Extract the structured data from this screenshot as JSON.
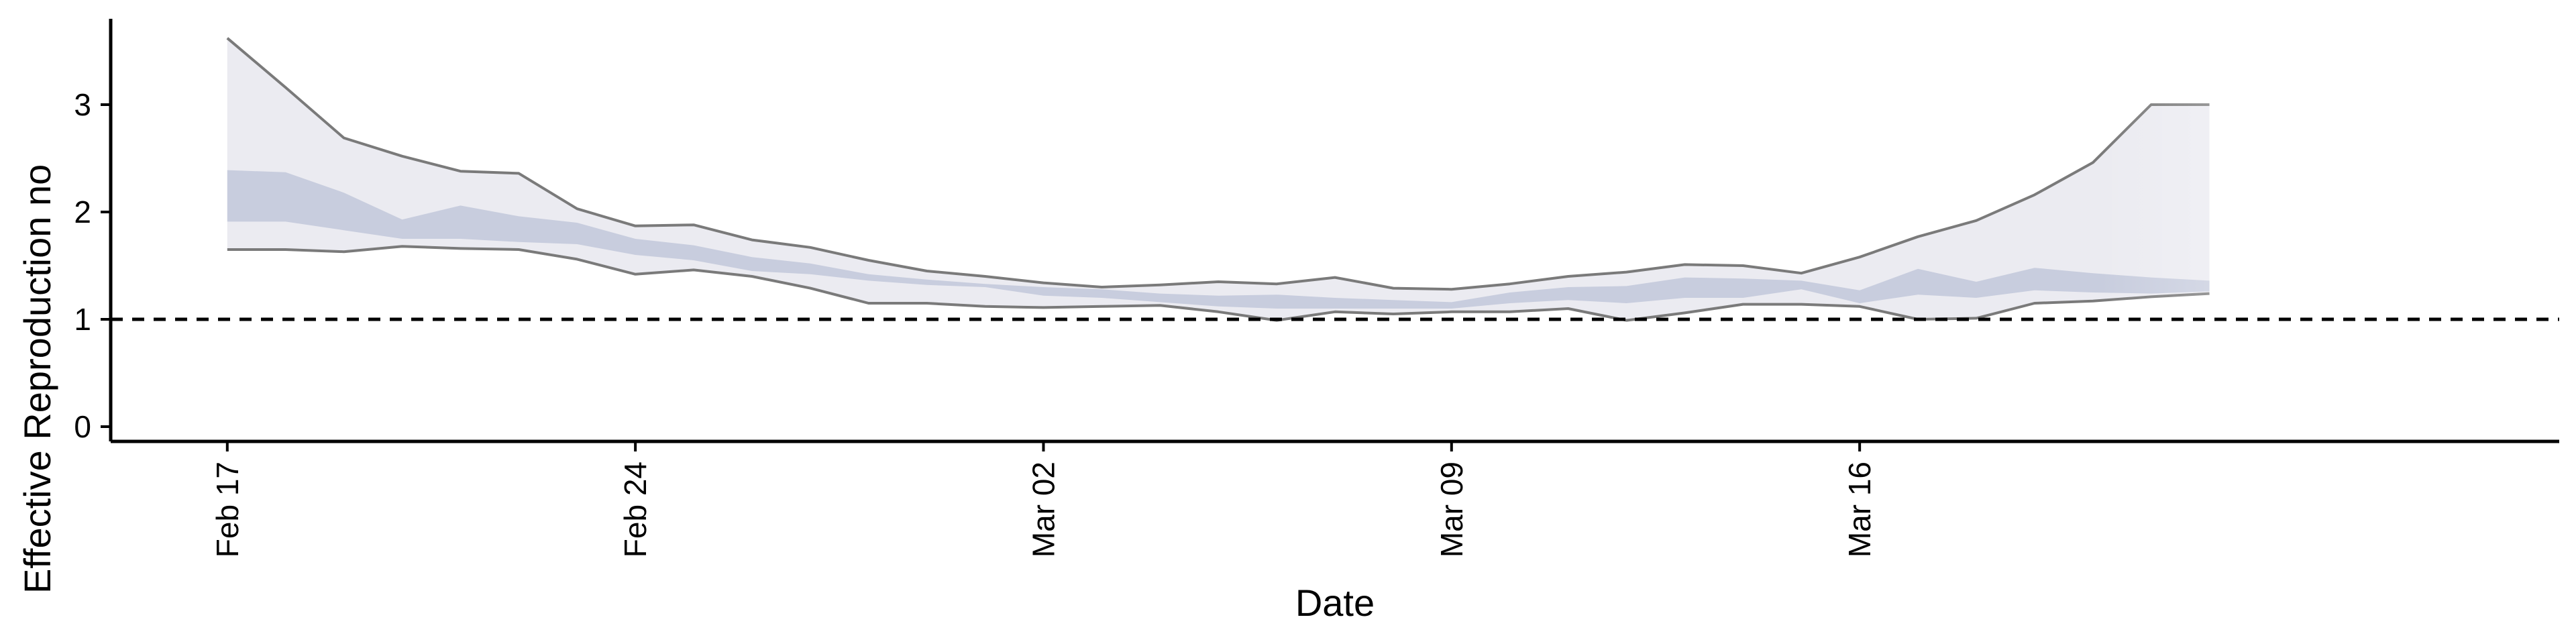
{
  "chart_data": {
    "type": "area",
    "xlabel": "Date",
    "ylabel": "Effective Reproduction no",
    "x_ticks": [
      "Feb 17",
      "Feb 24",
      "Mar 02",
      "Mar 09",
      "Mar 16"
    ],
    "y_ticks": [
      0,
      1,
      2,
      3
    ],
    "xlim": [
      "2020-02-15",
      "2020-03-28"
    ],
    "ylim": [
      -0.15,
      3.85
    ],
    "reference_line": {
      "y": 1,
      "style": "dashed"
    },
    "grid": false,
    "legend": "none",
    "dates": [
      "2020-02-17",
      "2020-02-18",
      "2020-02-19",
      "2020-02-20",
      "2020-02-21",
      "2020-02-22",
      "2020-02-23",
      "2020-02-24",
      "2020-02-25",
      "2020-02-26",
      "2020-02-27",
      "2020-02-28",
      "2020-02-29",
      "2020-03-01",
      "2020-03-02",
      "2020-03-03",
      "2020-03-04",
      "2020-03-05",
      "2020-03-06",
      "2020-03-07",
      "2020-03-08",
      "2020-03-09",
      "2020-03-10",
      "2020-03-11",
      "2020-03-12",
      "2020-03-13",
      "2020-03-14",
      "2020-03-15",
      "2020-03-16",
      "2020-03-17",
      "2020-03-18",
      "2020-03-19",
      "2020-03-20",
      "2020-03-21",
      "2020-03-22"
    ],
    "series": [
      {
        "band": "outer",
        "lower": [
          1.65,
          1.65,
          1.63,
          1.68,
          1.66,
          1.65,
          1.56,
          1.42,
          1.46,
          1.4,
          1.29,
          1.15,
          1.15,
          1.12,
          1.11,
          1.12,
          1.13,
          1.07,
          0.99,
          1.07,
          1.05,
          1.07,
          1.07,
          1.1,
          0.99,
          1.06,
          1.14,
          1.14,
          1.12,
          1.0,
          1.01,
          1.15,
          1.17,
          1.21,
          1.24
        ],
        "upper": [
          3.62,
          3.16,
          2.69,
          2.52,
          2.38,
          2.36,
          2.03,
          1.87,
          1.88,
          1.74,
          1.67,
          1.55,
          1.45,
          1.4,
          1.34,
          1.3,
          1.32,
          1.35,
          1.33,
          1.39,
          1.29,
          1.28,
          1.33,
          1.4,
          1.44,
          1.51,
          1.5,
          1.43,
          1.58,
          1.77,
          1.92,
          2.16,
          2.46,
          3.0,
          3.0
        ]
      },
      {
        "band": "inner",
        "lower": [
          1.91,
          1.91,
          1.83,
          1.75,
          1.75,
          1.72,
          1.7,
          1.6,
          1.55,
          1.45,
          1.42,
          1.36,
          1.32,
          1.3,
          1.22,
          1.2,
          1.16,
          1.12,
          1.1,
          1.1,
          1.1,
          1.1,
          1.15,
          1.18,
          1.15,
          1.2,
          1.2,
          1.28,
          1.15,
          1.23,
          1.2,
          1.27,
          1.25,
          1.24,
          1.26
        ],
        "upper": [
          2.39,
          2.37,
          2.18,
          1.93,
          2.06,
          1.96,
          1.9,
          1.75,
          1.69,
          1.58,
          1.52,
          1.42,
          1.37,
          1.33,
          1.3,
          1.28,
          1.24,
          1.22,
          1.23,
          1.2,
          1.18,
          1.16,
          1.25,
          1.3,
          1.31,
          1.39,
          1.38,
          1.36,
          1.27,
          1.47,
          1.35,
          1.48,
          1.43,
          1.39,
          1.36
        ]
      }
    ],
    "colors": {
      "outer_band": "#ebebf1",
      "inner_band": "#c8cdde",
      "band_edge": "#7a7a7a",
      "reference": "#000000"
    }
  }
}
